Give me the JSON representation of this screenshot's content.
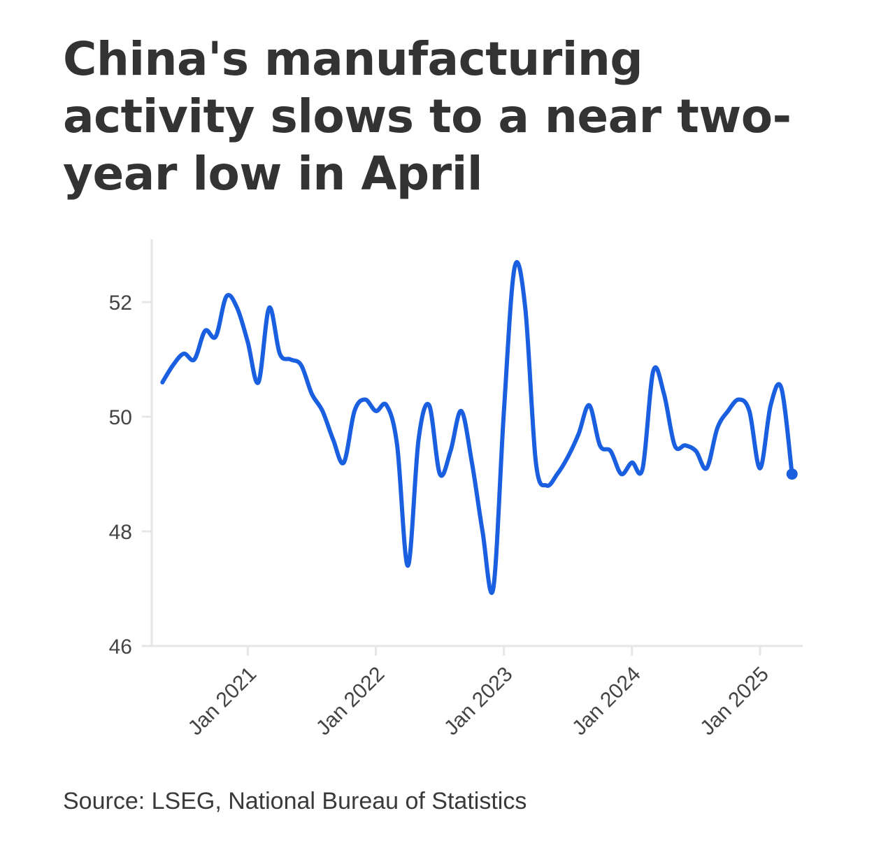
{
  "title": "China's manufacturing activity slows to a near two-year low in April",
  "source": "Source: LSEG, National Bureau of Statistics",
  "colors": {
    "line": "#1a5fe0",
    "axis": "#e6e6e6",
    "text": "#333333"
  },
  "chart_data": {
    "type": "line",
    "title": "China's manufacturing activity slows to a near two-year low in April",
    "xlabel": "",
    "ylabel": "",
    "ylim": [
      46,
      53.1
    ],
    "y_ticks": [
      {
        "value": 46,
        "label": "46"
      },
      {
        "value": 48,
        "label": "48"
      },
      {
        "value": 50,
        "label": "50"
      },
      {
        "value": 52,
        "label": "52"
      }
    ],
    "x_ticks": [
      {
        "value": "2021-01",
        "label": "Jan 2021"
      },
      {
        "value": "2022-01",
        "label": "Jan 2022"
      },
      {
        "value": "2023-01",
        "label": "Jan 2023"
      },
      {
        "value": "2024-01",
        "label": "Jan 2024"
      },
      {
        "value": "2025-01",
        "label": "Jan 2025"
      }
    ],
    "x_range": [
      "2020-04",
      "2025-05"
    ],
    "grid": false,
    "legend": "none",
    "series": [
      {
        "x": [
          "2020-05",
          "2020-06",
          "2020-07",
          "2020-08",
          "2020-09",
          "2020-10",
          "2020-11",
          "2020-12",
          "2021-01",
          "2021-02",
          "2021-03",
          "2021-04",
          "2021-05",
          "2021-06",
          "2021-07",
          "2021-08",
          "2021-09",
          "2021-10",
          "2021-11",
          "2021-12",
          "2022-01",
          "2022-02",
          "2022-03",
          "2022-04",
          "2022-05",
          "2022-06",
          "2022-07",
          "2022-08",
          "2022-09",
          "2022-10",
          "2022-11",
          "2022-12",
          "2023-01",
          "2023-02",
          "2023-03",
          "2023-04",
          "2023-05",
          "2023-06",
          "2023-07",
          "2023-08",
          "2023-09",
          "2023-10",
          "2023-11",
          "2023-12",
          "2024-01",
          "2024-02",
          "2024-03",
          "2024-04",
          "2024-05",
          "2024-06",
          "2024-07",
          "2024-08",
          "2024-09",
          "2024-10",
          "2024-11",
          "2024-12",
          "2025-01",
          "2025-02",
          "2025-03",
          "2025-04"
        ],
        "values": [
          50.6,
          50.9,
          51.1,
          51.0,
          51.5,
          51.4,
          52.1,
          51.9,
          51.3,
          50.6,
          51.9,
          51.1,
          51.0,
          50.9,
          50.4,
          50.1,
          49.6,
          49.2,
          50.1,
          50.3,
          50.1,
          50.2,
          49.5,
          47.4,
          49.6,
          50.2,
          49.0,
          49.4,
          50.1,
          49.2,
          48.0,
          47.0,
          50.1,
          52.6,
          51.9,
          49.2,
          48.8,
          49.0,
          49.3,
          49.7,
          50.2,
          49.5,
          49.4,
          49.0,
          49.2,
          49.1,
          50.8,
          50.4,
          49.5,
          49.5,
          49.4,
          49.1,
          49.8,
          50.1,
          50.3,
          50.1,
          49.1,
          50.2,
          50.5,
          49.0
        ]
      }
    ]
  }
}
